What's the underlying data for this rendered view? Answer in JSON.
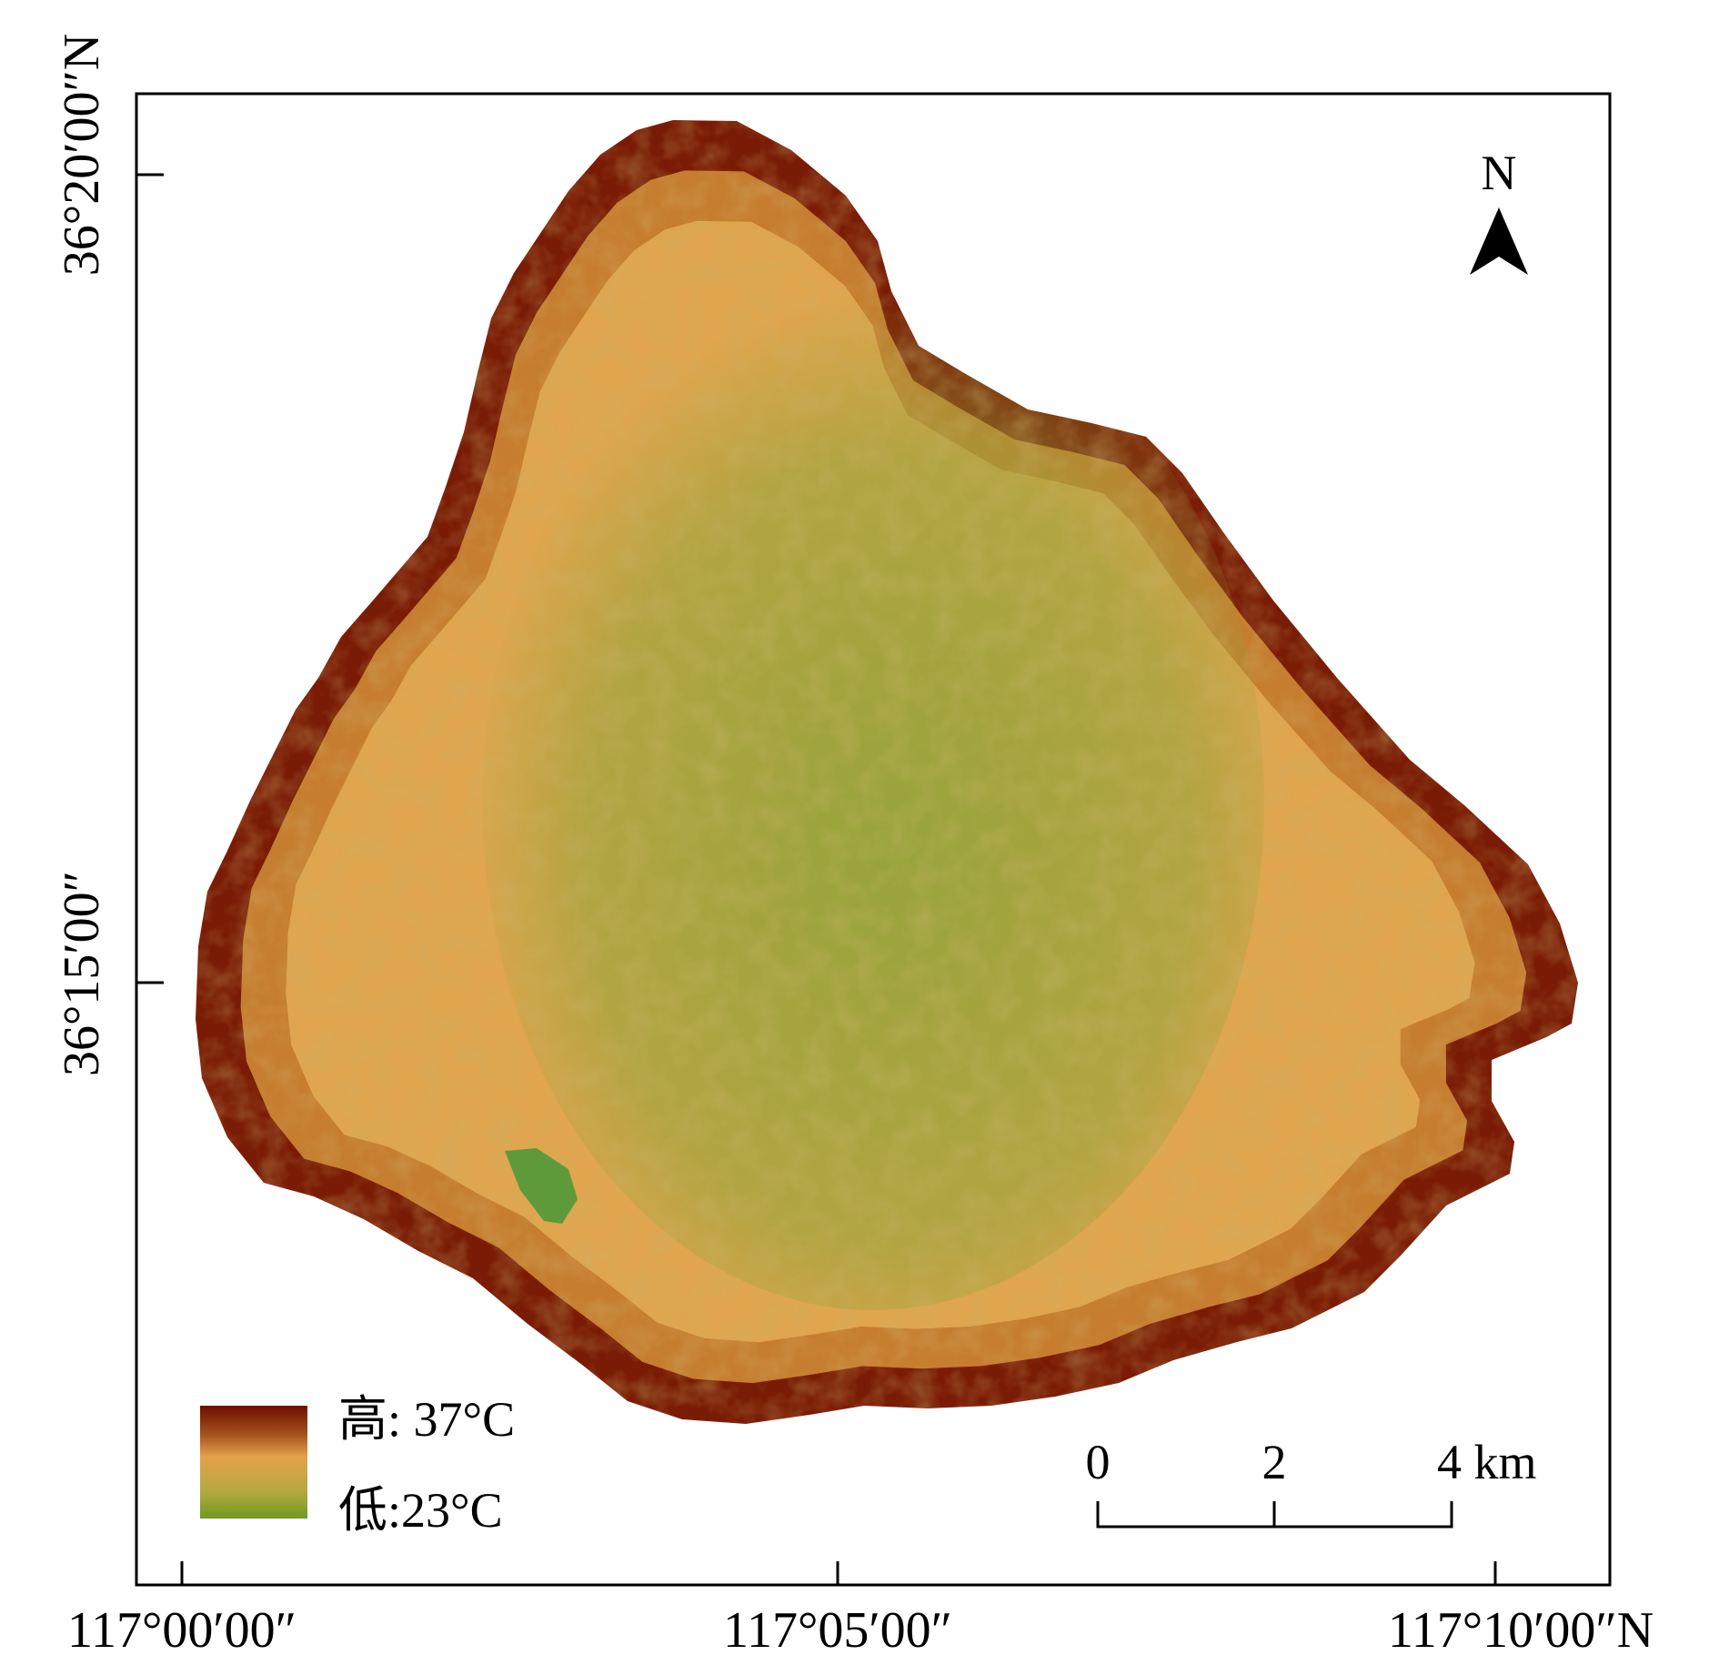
{
  "axes": {
    "x_ticks": [
      "117°00′00″",
      "117°05′00″",
      "117°10′00″N"
    ],
    "y_ticks": [
      "36°20′00″N",
      "36°15′00″"
    ]
  },
  "north_arrow": {
    "label": "N",
    "icon": "north-arrow-icon"
  },
  "legend": {
    "high_label": "高: 37°C",
    "low_label": "低:23°C",
    "colors": [
      "#6e0e00",
      "#a4501c",
      "#e3a149",
      "#b6a943",
      "#6f9a1f"
    ]
  },
  "scale_bar": {
    "ticks": [
      "0",
      "2",
      "4 km"
    ],
    "values_km": [
      0,
      2,
      4
    ]
  },
  "study_area": {
    "edge_color": "#7a1c05",
    "ring_color": "#c77d2f",
    "body_color": "#e0a54e",
    "cool_color": "#93a43a",
    "water_color": "#5f9a3a"
  }
}
